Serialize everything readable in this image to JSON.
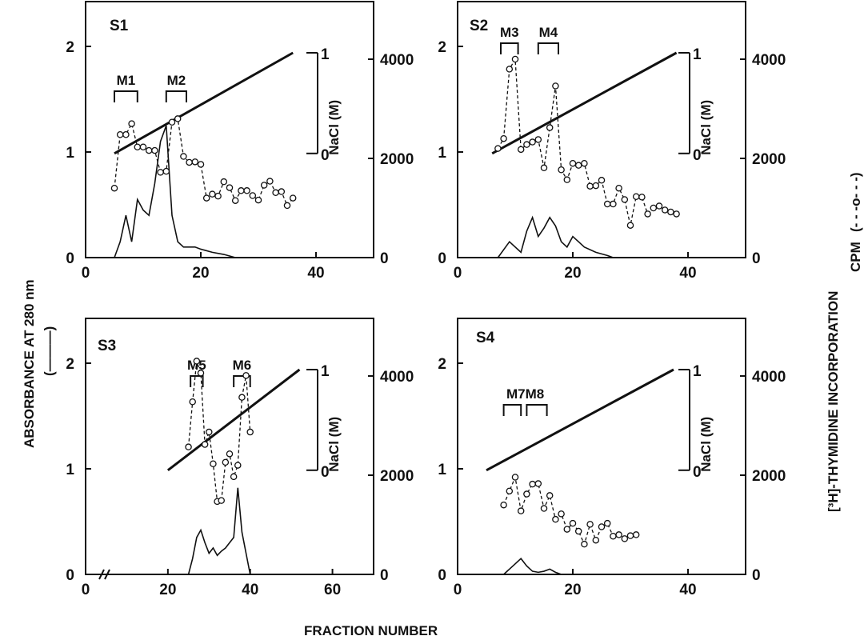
{
  "figure": {
    "ylabel_left": "ABSORBANCE AT 280 nm",
    "ylabel_left_key": "(———)",
    "ylabel_right": "[³H]-THYMIDINE INCORPORATION",
    "ylabel_right_unit": "CPM",
    "ylabel_right_key": "(- - -o- - -)",
    "xlabel": "FRACTION NUMBER",
    "nacl_label": "NaCl (M)",
    "nacl_ticks": [
      "0",
      "1"
    ]
  },
  "chart_data": [
    {
      "type": "line",
      "panel": "S1",
      "xlim": [
        0,
        50
      ],
      "xticks": [
        0,
        20,
        40
      ],
      "ylim_abs": [
        0,
        2.5
      ],
      "yticks_abs": [
        0,
        1,
        2
      ],
      "ylim_cpm": [
        0,
        4200
      ],
      "yticks_cpm": [
        0,
        2000,
        4000
      ],
      "nacl_gradient": {
        "x": [
          5,
          36
        ],
        "nacl": [
          0,
          1
        ]
      },
      "pools": [
        {
          "name": "M1",
          "x": [
            5,
            9
          ]
        },
        {
          "name": "M2",
          "x": [
            14,
            17.5
          ]
        }
      ],
      "series": [
        {
          "name": "absorbance",
          "x": [
            5,
            6,
            7,
            8,
            9,
            10,
            11,
            12,
            13,
            14,
            15,
            16,
            17,
            18,
            19,
            20,
            22,
            24,
            26
          ],
          "values": [
            0,
            0.15,
            0.4,
            0.15,
            0.55,
            0.45,
            0.4,
            0.7,
            1.1,
            1.25,
            0.4,
            0.15,
            0.1,
            0.1,
            0.1,
            0.08,
            0.05,
            0.03,
            0
          ]
        },
        {
          "name": "cpm",
          "x": [
            5,
            6,
            7,
            8,
            9,
            10,
            11,
            12,
            13,
            14,
            15,
            16,
            17,
            18,
            19,
            20,
            21,
            22,
            23,
            24,
            25,
            26,
            27,
            28,
            29,
            30,
            31,
            32,
            33,
            34,
            35,
            36
          ],
          "values": [
            1400,
            2480,
            2480,
            2700,
            2230,
            2230,
            2160,
            2160,
            1720,
            1740,
            2730,
            2800,
            2040,
            1920,
            1930,
            1880,
            1200,
            1280,
            1240,
            1530,
            1410,
            1150,
            1350,
            1350,
            1250,
            1160,
            1460,
            1540,
            1310,
            1330,
            1050,
            1200
          ]
        }
      ]
    },
    {
      "type": "line",
      "panel": "S2",
      "xlim": [
        0,
        50
      ],
      "xticks": [
        0,
        20,
        40
      ],
      "ylim_abs": [
        0,
        2.5
      ],
      "yticks_abs": [
        0,
        1,
        2
      ],
      "ylim_cpm": [
        0,
        4200
      ],
      "yticks_cpm": [
        0,
        2000,
        4000
      ],
      "nacl_gradient": {
        "x": [
          6,
          38
        ],
        "nacl": [
          0,
          1
        ]
      },
      "pools": [
        {
          "name": "M3",
          "x": [
            7.5,
            10.5
          ]
        },
        {
          "name": "M4",
          "x": [
            14,
            17.5
          ]
        }
      ],
      "series": [
        {
          "name": "absorbance",
          "x": [
            7,
            9,
            11,
            12,
            13,
            14,
            15,
            16,
            17,
            18,
            19,
            20,
            21,
            22,
            24,
            26,
            27
          ],
          "values": [
            0,
            0.15,
            0.05,
            0.25,
            0.38,
            0.2,
            0.28,
            0.38,
            0.3,
            0.15,
            0.1,
            0.2,
            0.15,
            0.1,
            0.05,
            0.02,
            0
          ]
        },
        {
          "name": "cpm",
          "x": [
            7,
            8,
            9,
            10,
            11,
            12,
            13,
            14,
            15,
            16,
            17,
            18,
            19,
            20,
            21,
            22,
            23,
            24,
            25,
            26,
            27,
            28,
            29,
            30,
            31,
            32,
            33,
            34,
            35,
            36,
            37,
            38
          ],
          "values": [
            2200,
            2400,
            3800,
            4000,
            2180,
            2280,
            2330,
            2380,
            1810,
            2620,
            3460,
            1770,
            1570,
            1900,
            1860,
            1900,
            1440,
            1450,
            1560,
            1080,
            1080,
            1400,
            1170,
            650,
            1230,
            1220,
            880,
            1000,
            1040,
            960,
            920,
            880
          ]
        }
      ]
    },
    {
      "type": "line",
      "panel": "S3",
      "xlim": [
        0,
        70
      ],
      "xticks": [
        0,
        20,
        40,
        60
      ],
      "axis_break": true,
      "ylim_abs": [
        0,
        2.5
      ],
      "yticks_abs": [
        0,
        1,
        2
      ],
      "ylim_cpm": [
        0,
        4200
      ],
      "yticks_cpm": [
        0,
        2000,
        4000
      ],
      "nacl_gradient": {
        "x": [
          20,
          52
        ],
        "nacl": [
          0,
          1
        ]
      },
      "pools": [
        {
          "name": "M5",
          "x": [
            25.5,
            28.5
          ]
        },
        {
          "name": "M6",
          "x": [
            36,
            40
          ]
        }
      ],
      "series": [
        {
          "name": "absorbance",
          "x": [
            25,
            26,
            27,
            28,
            29,
            30,
            31,
            32,
            33,
            34,
            35,
            36,
            37,
            38,
            39,
            40
          ],
          "values": [
            0,
            0.15,
            0.35,
            0.42,
            0.3,
            0.2,
            0.25,
            0.18,
            0.22,
            0.25,
            0.3,
            0.35,
            0.82,
            0.4,
            0.2,
            0
          ]
        },
        {
          "name": "cpm",
          "x": [
            25,
            26,
            27,
            28,
            29,
            30,
            31,
            32,
            33,
            34,
            35,
            36,
            37,
            38,
            39,
            40
          ],
          "values": [
            2570,
            3480,
            4300,
            4060,
            2620,
            2870,
            2230,
            1470,
            1490,
            2260,
            2430,
            1970,
            2200,
            3570,
            4010,
            2870
          ]
        }
      ]
    },
    {
      "type": "line",
      "panel": "S4",
      "xlim": [
        0,
        50
      ],
      "xticks": [
        0,
        20,
        40
      ],
      "ylim_abs": [
        0,
        2.5
      ],
      "yticks_abs": [
        0,
        1,
        2
      ],
      "ylim_cpm": [
        0,
        4200
      ],
      "yticks_cpm": [
        0,
        2000,
        4000
      ],
      "nacl_gradient": {
        "x": [
          5,
          37.5
        ],
        "nacl": [
          0,
          1
        ]
      },
      "pools": [
        {
          "name": "M7",
          "x": [
            8,
            11
          ]
        },
        {
          "name": "M8",
          "x": [
            12,
            15.5
          ]
        }
      ],
      "pool_label": "M7M8",
      "series": [
        {
          "name": "absorbance",
          "x": [
            8,
            10,
            11,
            12,
            13,
            14,
            15,
            16,
            17,
            18
          ],
          "values": [
            0,
            0.1,
            0.15,
            0.08,
            0.03,
            0.02,
            0.03,
            0.05,
            0.02,
            0
          ]
        },
        {
          "name": "cpm",
          "x": [
            8,
            9,
            10,
            11,
            12,
            13,
            14,
            15,
            16,
            17,
            18,
            19,
            20,
            21,
            22,
            23,
            24,
            25,
            26,
            27,
            28,
            29,
            30,
            31
          ],
          "values": [
            1400,
            1680,
            1960,
            1280,
            1620,
            1820,
            1830,
            1330,
            1590,
            1110,
            1220,
            910,
            1030,
            870,
            610,
            1010,
            690,
            960,
            1030,
            770,
            800,
            720,
            780,
            800
          ]
        }
      ]
    }
  ]
}
